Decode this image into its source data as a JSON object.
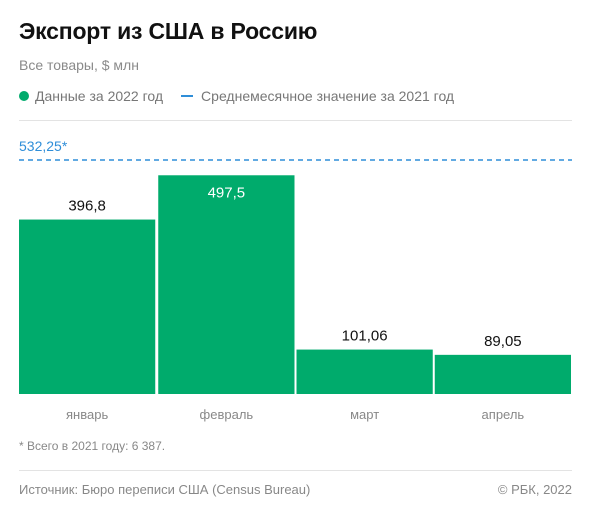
{
  "header": {
    "title": "Экспорт из США в Россию",
    "subtitle": "Все товары, $ млн"
  },
  "legend": {
    "series_label": "Данные за 2022 год",
    "average_label": "Среднемесячное значение за 2021 год"
  },
  "colors": {
    "bar": "#00ab6c",
    "average_line": "#2f8ed8"
  },
  "chart_data": {
    "type": "bar",
    "categories": [
      "январь",
      "февраль",
      "март",
      "апрель"
    ],
    "value_labels": [
      "396,8",
      "497,5",
      "101,06",
      "89,05"
    ],
    "series": [
      {
        "name": "Данные за 2022 год",
        "values": [
          396.8,
          497.5,
          101.06,
          89.05
        ]
      }
    ],
    "reference_line": {
      "name": "Среднемесячное значение за 2021 год",
      "value": 532.25,
      "label": "532,25*"
    },
    "ylim": [
      0,
      532.25
    ],
    "grid": false,
    "legend_position": "top-left"
  },
  "note": "* Всего в 2021 году: 6 387.",
  "footer": {
    "source": "Источник: Бюро переписи США (Census Bureau)",
    "copyright": "© РБК, 2022"
  }
}
